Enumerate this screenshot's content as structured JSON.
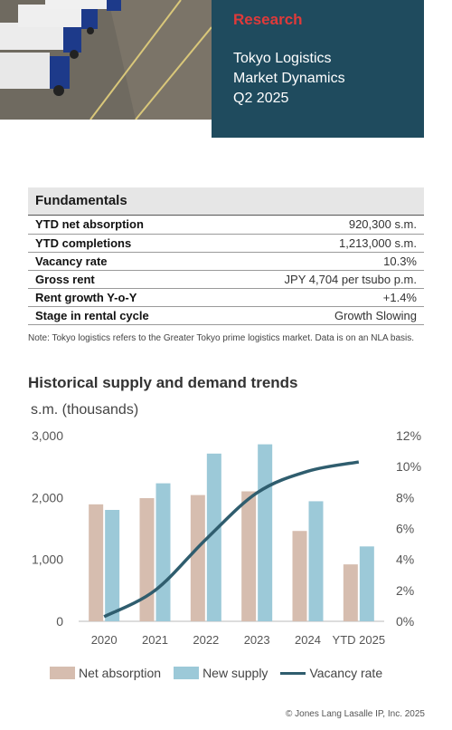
{
  "hero": {
    "label": "Research",
    "title_lines": [
      "Tokyo Logistics",
      "Market Dynamics",
      "Q2 2025"
    ]
  },
  "fundamentals": {
    "heading": "Fundamentals",
    "rows": [
      {
        "key": "YTD net absorption",
        "value": "920,300 s.m."
      },
      {
        "key": "YTD completions",
        "value": "1,213,000 s.m."
      },
      {
        "key": "Vacancy rate",
        "value": "10.3%"
      },
      {
        "key": "Gross rent",
        "value": "JPY 4,704 per tsubo p.m."
      },
      {
        "key": "Rent growth Y-o-Y",
        "value": "+1.4%"
      },
      {
        "key": "Stage in rental cycle",
        "value": "Growth Slowing"
      }
    ]
  },
  "note": "Note: Tokyo logistics refers to the Greater Tokyo prime logistics market. Data is on an NLA basis.",
  "chart_title": "Historical supply and demand trends",
  "chart_unit": "s.m. (thousands)",
  "colors": {
    "net_absorption": "#d6bdaf",
    "new_supply": "#9cc9d8",
    "vacancy": "#2f5d6e",
    "hero_bg": "#1f4b5e",
    "accent": "#e03a3a"
  },
  "chart_data": {
    "type": "bar",
    "categories": [
      "2020",
      "2021",
      "2022",
      "2023",
      "2024",
      "YTD 2025"
    ],
    "series": [
      {
        "name": "Net absorption",
        "values": [
          1890,
          1990,
          2040,
          2100,
          1460,
          920
        ]
      },
      {
        "name": "New supply",
        "values": [
          1800,
          2230,
          2710,
          2860,
          1940,
          1210
        ]
      },
      {
        "name": "Vacancy rate",
        "type": "line",
        "axis": "right",
        "values": [
          0.3,
          2.0,
          5.3,
          8.3,
          9.7,
          10.3
        ]
      }
    ],
    "ylim": [
      0,
      3000
    ],
    "yticks": [
      "0",
      "1,000",
      "2,000",
      "3,000"
    ],
    "y2lim": [
      0,
      12
    ],
    "y2ticks": [
      "0%",
      "2%",
      "4%",
      "6%",
      "8%",
      "10%",
      "12%"
    ],
    "legend": [
      "Net absorption",
      "New supply",
      "Vacancy rate"
    ]
  },
  "copyright": "© Jones Lang Lasalle IP, Inc. 2025"
}
